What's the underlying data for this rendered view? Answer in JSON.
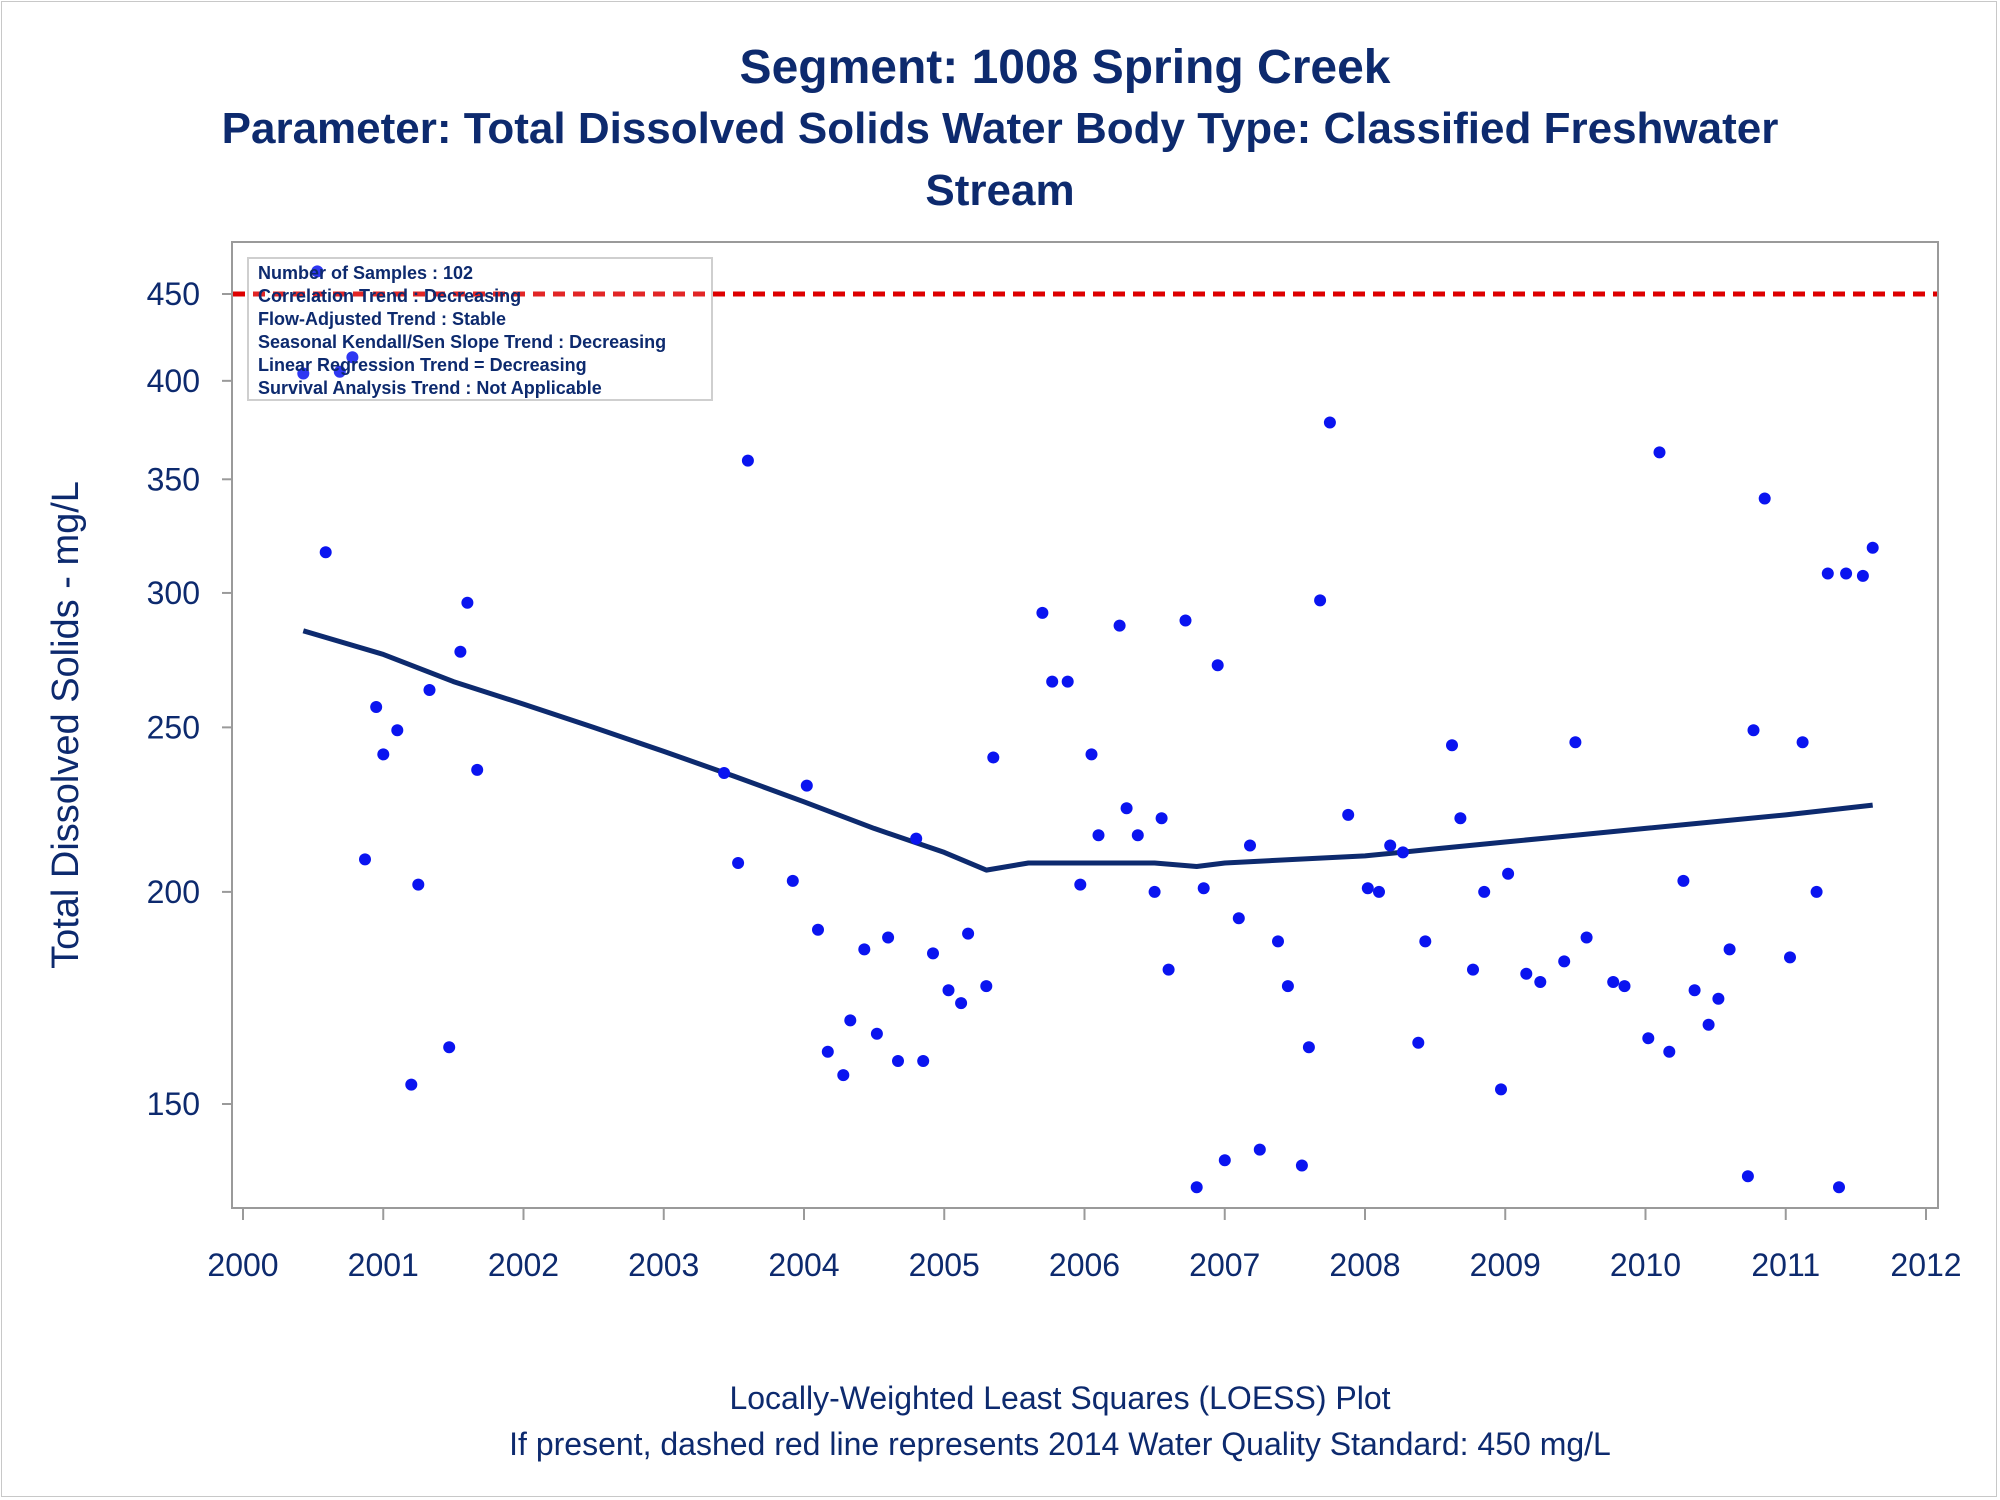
{
  "titles": {
    "line1": "Segment: 1008  Spring Creek",
    "line2": "Parameter: Total Dissolved Solids   Water Body Type: Classified Freshwater",
    "line3": "Stream"
  },
  "footnotes": {
    "line1": "Locally-Weighted Least Squares (LOESS) Plot",
    "line2": "If present, dashed red line represents 2014 Water Quality Standard: 450   mg/L"
  },
  "info_box": [
    "Number of Samples : 102",
    "Correlation Trend : Decreasing",
    "Flow-Adjusted Trend : Stable",
    "Seasonal Kendall/Sen Slope Trend : Decreasing",
    "Linear Regression Trend = Decreasing",
    "Survival Analysis Trend : Not Applicable"
  ],
  "colors": {
    "points": "#0a14f0",
    "loess": "#0d2a6e",
    "standard": "#dd0000",
    "text": "#0d2a6e",
    "axis": "#9a9a9a"
  },
  "chart_data": {
    "type": "scatter",
    "xlabel": "",
    "ylabel": "Total Dissolved Solids - mg/L",
    "y_scale": "log",
    "xlim": [
      2000,
      2012
    ],
    "ylim": [
      130,
      470
    ],
    "x_ticks": [
      2000,
      2001,
      2002,
      2003,
      2004,
      2005,
      2006,
      2007,
      2008,
      2009,
      2010,
      2011,
      2012
    ],
    "y_ticks": [
      150,
      200,
      250,
      300,
      350,
      400,
      450
    ],
    "standard_line": 450,
    "grid": false,
    "legend": "none",
    "points": [
      [
        2000.43,
        404
      ],
      [
        2000.53,
        464
      ],
      [
        2000.59,
        317
      ],
      [
        2000.69,
        405
      ],
      [
        2000.78,
        413
      ],
      [
        2000.87,
        209
      ],
      [
        2000.95,
        257
      ],
      [
        2001.0,
        241
      ],
      [
        2001.1,
        249
      ],
      [
        2001.2,
        154
      ],
      [
        2001.25,
        202
      ],
      [
        2001.33,
        263
      ],
      [
        2001.47,
        162
      ],
      [
        2001.55,
        277
      ],
      [
        2001.6,
        296
      ],
      [
        2001.67,
        236
      ],
      [
        2003.43,
        235
      ],
      [
        2003.53,
        208
      ],
      [
        2003.6,
        359
      ],
      [
        2003.92,
        203
      ],
      [
        2004.02,
        231
      ],
      [
        2004.1,
        190
      ],
      [
        2004.17,
        161
      ],
      [
        2004.28,
        156
      ],
      [
        2004.33,
        168
      ],
      [
        2004.43,
        185
      ],
      [
        2004.52,
        165
      ],
      [
        2004.6,
        188
      ],
      [
        2004.67,
        159
      ],
      [
        2004.8,
        215
      ],
      [
        2004.85,
        159
      ],
      [
        2004.92,
        184
      ],
      [
        2005.03,
        175
      ],
      [
        2005.12,
        172
      ],
      [
        2005.17,
        189
      ],
      [
        2005.3,
        176
      ],
      [
        2005.35,
        240
      ],
      [
        2005.7,
        292
      ],
      [
        2005.77,
        266
      ],
      [
        2005.88,
        266
      ],
      [
        2005.97,
        202
      ],
      [
        2006.05,
        241
      ],
      [
        2006.1,
        216
      ],
      [
        2006.25,
        287
      ],
      [
        2006.3,
        224
      ],
      [
        2006.38,
        216
      ],
      [
        2006.5,
        200
      ],
      [
        2006.55,
        221
      ],
      [
        2006.6,
        180
      ],
      [
        2006.72,
        289
      ],
      [
        2006.8,
        134
      ],
      [
        2006.85,
        201
      ],
      [
        2006.95,
        272
      ],
      [
        2007.0,
        139
      ],
      [
        2007.1,
        193
      ],
      [
        2007.18,
        213
      ],
      [
        2007.25,
        141
      ],
      [
        2007.38,
        187
      ],
      [
        2007.45,
        176
      ],
      [
        2007.55,
        138
      ],
      [
        2007.6,
        162
      ],
      [
        2007.68,
        297
      ],
      [
        2007.75,
        378
      ],
      [
        2007.88,
        222
      ],
      [
        2008.02,
        201
      ],
      [
        2008.1,
        200
      ],
      [
        2008.18,
        213
      ],
      [
        2008.27,
        211
      ],
      [
        2008.38,
        163
      ],
      [
        2008.43,
        187
      ],
      [
        2008.62,
        244
      ],
      [
        2008.68,
        221
      ],
      [
        2008.77,
        180
      ],
      [
        2008.85,
        200
      ],
      [
        2008.97,
        153
      ],
      [
        2009.02,
        205
      ],
      [
        2009.15,
        179
      ],
      [
        2009.25,
        177
      ],
      [
        2009.42,
        182
      ],
      [
        2009.5,
        245
      ],
      [
        2009.58,
        188
      ],
      [
        2009.77,
        177
      ],
      [
        2009.85,
        176
      ],
      [
        2010.02,
        164
      ],
      [
        2010.1,
        363
      ],
      [
        2010.17,
        161
      ],
      [
        2010.27,
        203
      ],
      [
        2010.35,
        175
      ],
      [
        2010.45,
        167
      ],
      [
        2010.52,
        173
      ],
      [
        2010.6,
        185
      ],
      [
        2010.73,
        136
      ],
      [
        2010.77,
        249
      ],
      [
        2010.85,
        341
      ],
      [
        2011.03,
        183
      ],
      [
        2011.12,
        245
      ],
      [
        2011.22,
        200
      ],
      [
        2011.3,
        308
      ],
      [
        2011.38,
        134
      ],
      [
        2011.43,
        308
      ],
      [
        2011.55,
        307
      ],
      [
        2011.62,
        319
      ]
    ],
    "loess_line": [
      [
        2000.43,
        285
      ],
      [
        2001.0,
        276
      ],
      [
        2001.5,
        266
      ],
      [
        2002.0,
        258
      ],
      [
        2002.5,
        250
      ],
      [
        2003.0,
        242
      ],
      [
        2003.5,
        234
      ],
      [
        2004.0,
        226
      ],
      [
        2004.5,
        218
      ],
      [
        2005.0,
        211
      ],
      [
        2005.3,
        206
      ],
      [
        2005.6,
        208
      ],
      [
        2006.0,
        208
      ],
      [
        2006.5,
        208
      ],
      [
        2006.8,
        207
      ],
      [
        2007.0,
        208
      ],
      [
        2007.5,
        209
      ],
      [
        2008.0,
        210
      ],
      [
        2008.5,
        212
      ],
      [
        2009.0,
        214
      ],
      [
        2009.5,
        216
      ],
      [
        2010.0,
        218
      ],
      [
        2010.5,
        220
      ],
      [
        2011.0,
        222
      ],
      [
        2011.62,
        225
      ]
    ]
  }
}
